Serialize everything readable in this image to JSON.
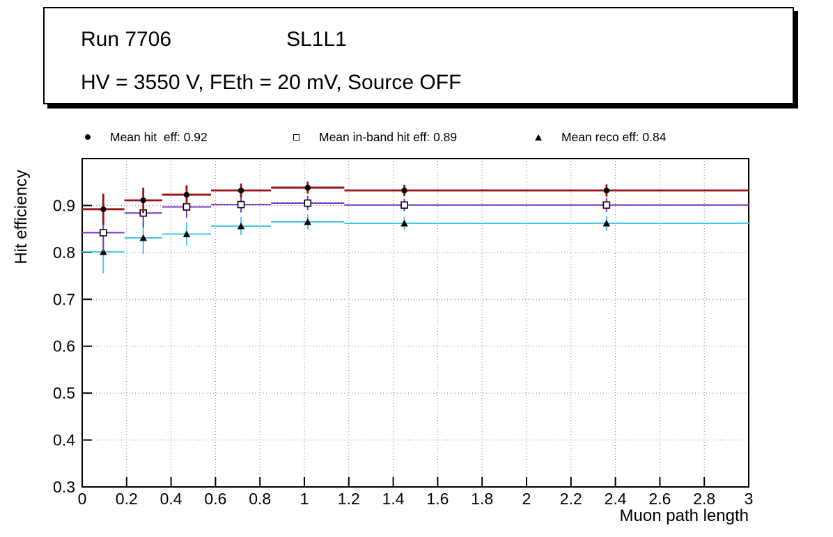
{
  "title_box": {
    "run": "Run 7706",
    "chamber": "SL1L1",
    "conditions": "HV = 3550 V, FEth = 20 mV, Source OFF"
  },
  "chart_data": {
    "type": "scatter",
    "title": "",
    "xlabel": "Muon path length",
    "ylabel": "Hit efficiency",
    "xlim": [
      0,
      3
    ],
    "ylim": [
      0.3,
      1.0
    ],
    "grid": true,
    "legend_position": "top",
    "x_ticks": [
      0,
      0.2,
      0.4,
      0.6,
      0.8,
      1,
      1.2,
      1.4,
      1.6,
      1.8,
      2,
      2.2,
      2.4,
      2.6,
      2.8,
      3
    ],
    "x_tick_labels": [
      "0",
      "0.2",
      "0.4",
      "0.6",
      "0.8",
      "1",
      "1.2",
      "1.4",
      "1.6",
      "1.8",
      "2",
      "2.2",
      "2.4",
      "2.6",
      "2.8",
      "3"
    ],
    "y_ticks": [
      0.3,
      0.4,
      0.5,
      0.6,
      0.7,
      0.8,
      0.9
    ],
    "y_tick_labels": [
      "0.3",
      "0.4",
      "0.5",
      "0.6",
      "0.7",
      "0.8",
      "0.9"
    ],
    "series": [
      {
        "name": "Mean hit  eff: 0.92",
        "slug": "mean-hit-eff",
        "marker": "filled-circle",
        "marker_color": "#000000",
        "line_color": "#991111",
        "line_width": 2.8,
        "x": [
          0.095,
          0.275,
          0.47,
          0.715,
          1.015,
          1.45,
          2.36
        ],
        "x_low": [
          0.0,
          0.19,
          0.36,
          0.58,
          0.85,
          1.18,
          1.72
        ],
        "x_high": [
          0.19,
          0.36,
          0.58,
          0.85,
          1.18,
          1.72,
          3.0
        ],
        "y": [
          0.892,
          0.911,
          0.923,
          0.932,
          0.938,
          0.932,
          0.932
        ],
        "yerr": [
          0.033,
          0.027,
          0.02,
          0.015,
          0.013,
          0.012,
          0.013
        ]
      },
      {
        "name": "Mean in-band hit eff: 0.89",
        "slug": "mean-inband-hit-eff",
        "marker": "open-square",
        "marker_color": "#000000",
        "line_color": "#7636c8",
        "line_width": 2,
        "x": [
          0.095,
          0.275,
          0.47,
          0.715,
          1.015,
          1.45,
          2.36
        ],
        "x_low": [
          0.0,
          0.19,
          0.36,
          0.58,
          0.85,
          1.18,
          1.72
        ],
        "x_high": [
          0.19,
          0.36,
          0.58,
          0.85,
          1.18,
          1.72,
          3.0
        ],
        "y": [
          0.842,
          0.884,
          0.897,
          0.902,
          0.905,
          0.901,
          0.901
        ],
        "yerr": [
          0.04,
          0.031,
          0.023,
          0.017,
          0.015,
          0.013,
          0.015
        ]
      },
      {
        "name": "Mean reco eff: 0.84",
        "slug": "mean-reco-eff",
        "marker": "filled-triangle",
        "marker_color": "#000000",
        "line_color": "#42c8ea",
        "line_width": 2,
        "x": [
          0.095,
          0.275,
          0.47,
          0.715,
          1.015,
          1.45,
          2.36
        ],
        "x_low": [
          0.0,
          0.19,
          0.36,
          0.58,
          0.85,
          1.18,
          1.72
        ],
        "x_high": [
          0.19,
          0.36,
          0.58,
          0.85,
          1.18,
          1.72,
          3.0
        ],
        "y": [
          0.801,
          0.831,
          0.839,
          0.856,
          0.865,
          0.862,
          0.862
        ],
        "yerr": [
          0.046,
          0.034,
          0.025,
          0.019,
          0.016,
          0.014,
          0.016
        ]
      }
    ],
    "colors": {
      "frame": "#000000",
      "grid": "#808080",
      "background": "#ffffff"
    }
  }
}
